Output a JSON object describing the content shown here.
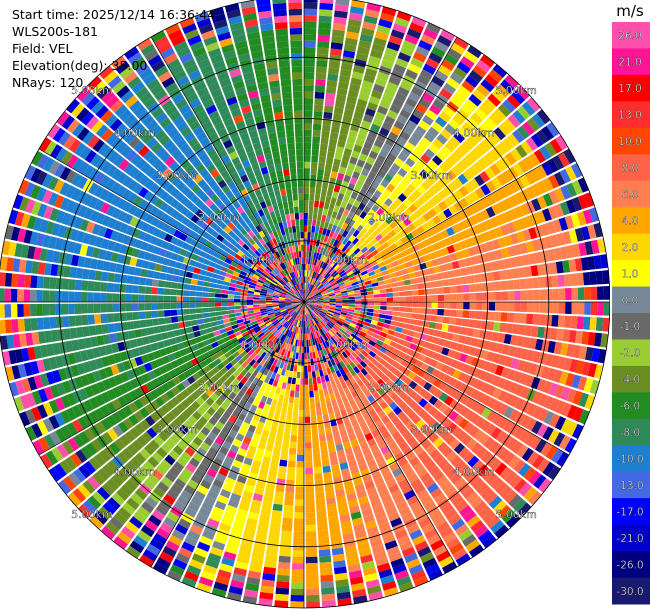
{
  "header": {
    "start_time": "Start time: 2025/12/14 16:36:44",
    "instrument": "WLS200s-181",
    "field": "Field: VEL",
    "elevation": "Elevation(deg): 35.00",
    "nrays": "NRays: 120"
  },
  "chart_data": {
    "type": "heatmap",
    "projection": "polar-ppi",
    "field": "VEL",
    "units": "m/s",
    "nrays": 120,
    "elevation_deg": 35.0,
    "range_ring_labels": [
      "1.00km",
      "2.00km",
      "3.00km",
      "4.00km",
      "5.00km"
    ],
    "range_rings_km": [
      1,
      2,
      3,
      4,
      5
    ],
    "max_range_km": 5.0,
    "spoke_interval_deg": 30,
    "colorbar": {
      "title": "m/s",
      "tick_labels": [
        "26.0",
        "21.0",
        "17.0",
        "13.0",
        "10.0",
        "8.0",
        "6.0",
        "4.0",
        "2.0",
        "1.0",
        "0.0",
        "-1.0",
        "-2.0",
        "-4.0",
        "-6.0",
        "-8.0",
        "-10.0",
        "-13.0",
        "-17.0",
        "-21.0",
        "-26.0",
        "-30.0"
      ],
      "bins": [
        {
          "from": 26,
          "to": 30,
          "color": "#ff4fae"
        },
        {
          "from": 21,
          "to": 26,
          "color": "#ff1493"
        },
        {
          "from": 17,
          "to": 21,
          "color": "#ff0000"
        },
        {
          "from": 13,
          "to": 17,
          "color": "#ff2d2d"
        },
        {
          "from": 10,
          "to": 13,
          "color": "#ff4500"
        },
        {
          "from": 8,
          "to": 10,
          "color": "#ff6347"
        },
        {
          "from": 6,
          "to": 8,
          "color": "#ff7f50"
        },
        {
          "from": 4,
          "to": 6,
          "color": "#ffa500"
        },
        {
          "from": 2,
          "to": 4,
          "color": "#ffd700"
        },
        {
          "from": 1,
          "to": 2,
          "color": "#ffff00"
        },
        {
          "from": 0,
          "to": 1,
          "color": "#778899"
        },
        {
          "from": -1,
          "to": 0,
          "color": "#696969"
        },
        {
          "from": -2,
          "to": -1,
          "color": "#9acd32"
        },
        {
          "from": -4,
          "to": -2,
          "color": "#6b8e23"
        },
        {
          "from": -6,
          "to": -4,
          "color": "#228b22"
        },
        {
          "from": -8,
          "to": -6,
          "color": "#2e8b57"
        },
        {
          "from": -10,
          "to": -8,
          "color": "#1e7fd0"
        },
        {
          "from": -13,
          "to": -10,
          "color": "#4169e1"
        },
        {
          "from": -17,
          "to": -13,
          "color": "#0000ff"
        },
        {
          "from": -21,
          "to": -17,
          "color": "#0000cd"
        },
        {
          "from": -26,
          "to": -21,
          "color": "#000080"
        },
        {
          "from": -30,
          "to": -26,
          "color": "#191970"
        }
      ]
    },
    "radial_velocity_pattern": {
      "approaching_azimuth_deg": 120,
      "peak_speed_ms": 9,
      "coherent_inner_radius_km": 1.5,
      "coherent_outer_radius_km": 4.2
    }
  }
}
